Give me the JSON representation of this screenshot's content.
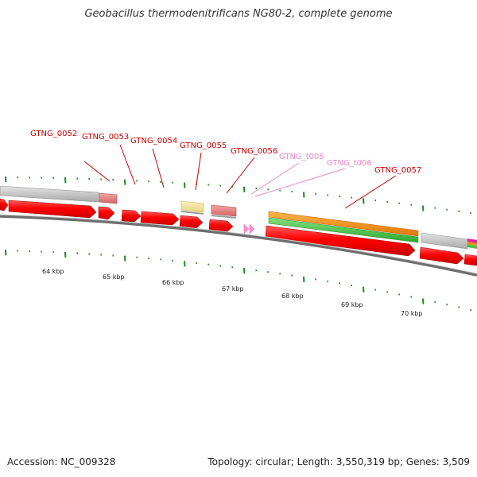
{
  "title": "Geobacillus thermodenitrificans NG80-2, complete genome",
  "footer": {
    "accession": "Accession: NC_009328",
    "stats": "Topology: circular; Length: 3,550,319 bp; Genes: 3,509"
  },
  "kbp_labels": [
    "64 kbp",
    "65 kbp",
    "66 kbp",
    "67 kbp",
    "68 kbp",
    "69 kbp",
    "70 kbp"
  ],
  "gene_labels": [
    {
      "id": "GTNG_0052",
      "kind": "gene"
    },
    {
      "id": "GTNG_0053",
      "kind": "gene"
    },
    {
      "id": "GTNG_0054",
      "kind": "gene"
    },
    {
      "id": "GTNG_0055",
      "kind": "gene"
    },
    {
      "id": "GTNG_0056",
      "kind": "gene"
    },
    {
      "id": "GTNG_t005",
      "kind": "trna"
    },
    {
      "id": "GTNG_t006",
      "kind": "trna"
    },
    {
      "id": "GTNG_0057",
      "kind": "gene"
    }
  ],
  "colors": {
    "cds": "#ff0000",
    "gene_feature": "#e97a7a",
    "gray_feature": "#bdbdbd",
    "trna": "#ff8fc8",
    "yellow_feature": "#f2e49a",
    "orange_feature": "#ff8c00",
    "green_feature": "#44c444",
    "backbone": "#888888",
    "tick": "#1a8c1a",
    "gene_label": "#cc0000",
    "trna_label": "#ee88c0"
  }
}
